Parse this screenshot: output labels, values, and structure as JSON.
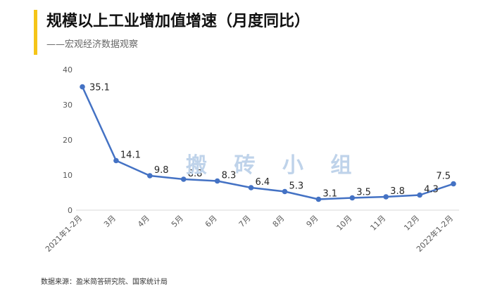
{
  "header": {
    "title": "规模以上工业增加值增速（月度同比）",
    "subtitle": "——宏观经济数据观察",
    "accent_color": "#F5C518"
  },
  "watermark": "搬 砖 小 组",
  "footer": {
    "source": "数据来源：盈米简答研究院、国家统计局"
  },
  "chart_data": {
    "type": "line",
    "categories": [
      "2021年1-2月",
      "3月",
      "4月",
      "5月",
      "6月",
      "7月",
      "8月",
      "9月",
      "10月",
      "11月",
      "12月",
      "2022年1-2月"
    ],
    "series": [
      {
        "values": [
          35.1,
          14.1,
          9.8,
          8.8,
          8.3,
          6.4,
          5.3,
          3.1,
          3.5,
          3.8,
          4.3,
          7.5
        ],
        "color": "#4472C4"
      }
    ],
    "data_labels": [
      "35.1",
      "14.1",
      "9.8",
      "8.8",
      "8.3",
      "6.4",
      "5.3",
      "3.1",
      "3.5",
      "3.8",
      "4.3",
      "7.5"
    ],
    "ylim": [
      0,
      40
    ],
    "yticks": [
      0,
      10,
      20,
      30,
      40
    ],
    "grid": false,
    "legend": "none"
  }
}
